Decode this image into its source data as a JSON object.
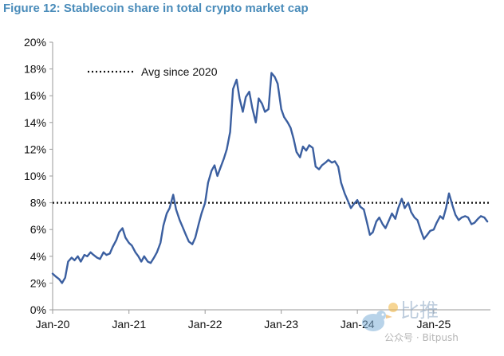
{
  "title": "Figure 12: Stablecoin share in total crypto market cap",
  "colors": {
    "title": "#4a8cba",
    "series": "#3b5fa0",
    "avg_line": "#111111",
    "axis": "#9a9a9a"
  },
  "watermark": {
    "text_cn": "比推",
    "text_small": "公众号 · Bitpush",
    "icon": "bird-logo-icon"
  },
  "chart_data": {
    "type": "line",
    "x_type": "date",
    "xlim": [
      "2020-01-01",
      "2025-09-30"
    ],
    "ylim": [
      0,
      20
    ],
    "y_ticks": [
      "0%",
      "2%",
      "4%",
      "6%",
      "8%",
      "10%",
      "12%",
      "14%",
      "16%",
      "18%",
      "20%"
    ],
    "x_ticks": [
      {
        "label": "Jan-20",
        "date": "2020-01-01"
      },
      {
        "label": "Jan-21",
        "date": "2021-01-01"
      },
      {
        "label": "Jan-22",
        "date": "2022-01-01"
      },
      {
        "label": "Jan-23",
        "date": "2023-01-01"
      },
      {
        "label": "Jan-24",
        "date": "2024-01-01"
      },
      {
        "label": "Jan-25",
        "date": "2025-01-01"
      }
    ],
    "grid": false,
    "legend_position": "top-left",
    "reference_line": {
      "label": "Avg since 2020",
      "value": 8,
      "style": "dotted"
    },
    "series": [
      {
        "unit": "%",
        "points": [
          [
            "2020-01-01",
            2.7
          ],
          [
            "2020-01-15",
            2.5
          ],
          [
            "2020-02-01",
            2.3
          ],
          [
            "2020-02-15",
            2.0
          ],
          [
            "2020-03-01",
            2.4
          ],
          [
            "2020-03-15",
            3.6
          ],
          [
            "2020-04-01",
            3.9
          ],
          [
            "2020-04-15",
            3.7
          ],
          [
            "2020-05-01",
            4.0
          ],
          [
            "2020-05-15",
            3.6
          ],
          [
            "2020-06-01",
            4.1
          ],
          [
            "2020-06-15",
            4.0
          ],
          [
            "2020-07-01",
            4.3
          ],
          [
            "2020-07-15",
            4.1
          ],
          [
            "2020-08-01",
            3.9
          ],
          [
            "2020-08-15",
            3.8
          ],
          [
            "2020-09-01",
            4.3
          ],
          [
            "2020-09-15",
            4.1
          ],
          [
            "2020-10-01",
            4.2
          ],
          [
            "2020-10-15",
            4.7
          ],
          [
            "2020-11-01",
            5.2
          ],
          [
            "2020-11-15",
            5.8
          ],
          [
            "2020-12-01",
            6.1
          ],
          [
            "2020-12-15",
            5.4
          ],
          [
            "2021-01-01",
            5.0
          ],
          [
            "2021-01-15",
            4.8
          ],
          [
            "2021-02-01",
            4.3
          ],
          [
            "2021-02-15",
            4.0
          ],
          [
            "2021-03-01",
            3.6
          ],
          [
            "2021-03-15",
            4.0
          ],
          [
            "2021-04-01",
            3.6
          ],
          [
            "2021-04-15",
            3.5
          ],
          [
            "2021-05-01",
            3.9
          ],
          [
            "2021-05-15",
            4.3
          ],
          [
            "2021-06-01",
            5.0
          ],
          [
            "2021-06-15",
            6.3
          ],
          [
            "2021-07-01",
            7.2
          ],
          [
            "2021-07-15",
            7.6
          ],
          [
            "2021-08-01",
            8.6
          ],
          [
            "2021-08-15",
            7.5
          ],
          [
            "2021-09-01",
            6.7
          ],
          [
            "2021-09-15",
            6.2
          ],
          [
            "2021-10-01",
            5.6
          ],
          [
            "2021-10-15",
            5.1
          ],
          [
            "2021-11-01",
            4.9
          ],
          [
            "2021-11-15",
            5.4
          ],
          [
            "2021-12-01",
            6.4
          ],
          [
            "2021-12-15",
            7.2
          ],
          [
            "2022-01-01",
            8.0
          ],
          [
            "2022-01-15",
            9.5
          ],
          [
            "2022-02-01",
            10.4
          ],
          [
            "2022-02-15",
            10.8
          ],
          [
            "2022-03-01",
            10.0
          ],
          [
            "2022-03-15",
            10.6
          ],
          [
            "2022-04-01",
            11.3
          ],
          [
            "2022-04-15",
            12.0
          ],
          [
            "2022-05-01",
            13.3
          ],
          [
            "2022-05-15",
            16.5
          ],
          [
            "2022-06-01",
            17.2
          ],
          [
            "2022-06-15",
            15.8
          ],
          [
            "2022-07-01",
            14.8
          ],
          [
            "2022-07-15",
            15.9
          ],
          [
            "2022-08-01",
            16.3
          ],
          [
            "2022-08-15",
            15.1
          ],
          [
            "2022-09-01",
            14.0
          ],
          [
            "2022-09-15",
            15.8
          ],
          [
            "2022-10-01",
            15.4
          ],
          [
            "2022-10-15",
            14.8
          ],
          [
            "2022-11-01",
            15.0
          ],
          [
            "2022-11-15",
            17.7
          ],
          [
            "2022-12-01",
            17.4
          ],
          [
            "2022-12-15",
            16.9
          ],
          [
            "2023-01-01",
            15.0
          ],
          [
            "2023-01-15",
            14.4
          ],
          [
            "2023-02-01",
            14.0
          ],
          [
            "2023-02-15",
            13.6
          ],
          [
            "2023-03-01",
            12.8
          ],
          [
            "2023-03-15",
            11.8
          ],
          [
            "2023-04-01",
            11.4
          ],
          [
            "2023-04-15",
            12.2
          ],
          [
            "2023-05-01",
            11.9
          ],
          [
            "2023-05-15",
            12.3
          ],
          [
            "2023-06-01",
            12.1
          ],
          [
            "2023-06-15",
            10.7
          ],
          [
            "2023-07-01",
            10.5
          ],
          [
            "2023-07-15",
            10.8
          ],
          [
            "2023-08-01",
            11.0
          ],
          [
            "2023-08-15",
            11.2
          ],
          [
            "2023-09-01",
            11.0
          ],
          [
            "2023-09-15",
            11.1
          ],
          [
            "2023-10-01",
            10.7
          ],
          [
            "2023-10-15",
            9.5
          ],
          [
            "2023-11-01",
            8.7
          ],
          [
            "2023-11-15",
            8.2
          ],
          [
            "2023-12-01",
            7.6
          ],
          [
            "2023-12-15",
            7.9
          ],
          [
            "2024-01-01",
            8.2
          ],
          [
            "2024-01-15",
            7.7
          ],
          [
            "2024-02-01",
            7.5
          ],
          [
            "2024-02-15",
            6.6
          ],
          [
            "2024-03-01",
            5.6
          ],
          [
            "2024-03-15",
            5.8
          ],
          [
            "2024-04-01",
            6.6
          ],
          [
            "2024-04-15",
            6.9
          ],
          [
            "2024-05-01",
            6.4
          ],
          [
            "2024-05-15",
            6.1
          ],
          [
            "2024-06-01",
            6.7
          ],
          [
            "2024-06-15",
            7.2
          ],
          [
            "2024-07-01",
            6.8
          ],
          [
            "2024-07-15",
            7.6
          ],
          [
            "2024-08-01",
            8.3
          ],
          [
            "2024-08-15",
            7.6
          ],
          [
            "2024-09-01",
            8.0
          ],
          [
            "2024-09-15",
            7.3
          ],
          [
            "2024-10-01",
            6.9
          ],
          [
            "2024-10-15",
            6.7
          ],
          [
            "2024-11-01",
            5.9
          ],
          [
            "2024-11-15",
            5.3
          ],
          [
            "2024-12-01",
            5.6
          ],
          [
            "2024-12-15",
            5.9
          ],
          [
            "2025-01-01",
            6.0
          ],
          [
            "2025-01-15",
            6.5
          ],
          [
            "2025-02-01",
            7.0
          ],
          [
            "2025-02-15",
            6.8
          ],
          [
            "2025-03-01",
            7.6
          ],
          [
            "2025-03-15",
            8.7
          ],
          [
            "2025-04-01",
            7.8
          ],
          [
            "2025-04-15",
            7.1
          ],
          [
            "2025-05-01",
            6.7
          ],
          [
            "2025-05-15",
            6.9
          ],
          [
            "2025-06-01",
            7.0
          ],
          [
            "2025-06-15",
            6.9
          ],
          [
            "2025-07-01",
            6.4
          ],
          [
            "2025-07-15",
            6.5
          ],
          [
            "2025-08-01",
            6.8
          ],
          [
            "2025-08-15",
            7.0
          ],
          [
            "2025-09-01",
            6.9
          ],
          [
            "2025-09-15",
            6.6
          ]
        ]
      }
    ]
  }
}
